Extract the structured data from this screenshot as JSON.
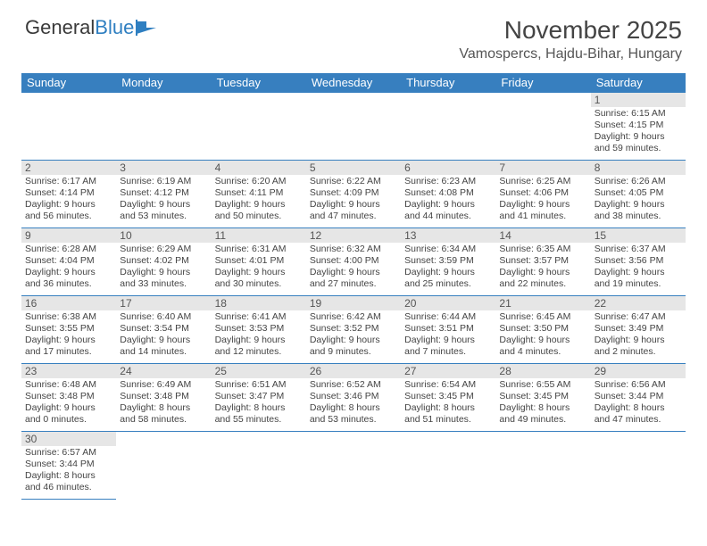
{
  "logo": {
    "text1": "General",
    "text2": "Blue"
  },
  "title": "November 2025",
  "location": "Vamospercs, Hajdu-Bihar, Hungary",
  "colors": {
    "header_bg": "#377fbf",
    "daynum_bg": "#e6e6e6",
    "text": "#444444",
    "logo_blue": "#2f7fc1"
  },
  "weekdays": [
    "Sunday",
    "Monday",
    "Tuesday",
    "Wednesday",
    "Thursday",
    "Friday",
    "Saturday"
  ],
  "weeks": [
    [
      null,
      null,
      null,
      null,
      null,
      null,
      {
        "n": "1",
        "sr": "Sunrise: 6:15 AM",
        "ss": "Sunset: 4:15 PM",
        "d1": "Daylight: 9 hours",
        "d2": "and 59 minutes."
      }
    ],
    [
      {
        "n": "2",
        "sr": "Sunrise: 6:17 AM",
        "ss": "Sunset: 4:14 PM",
        "d1": "Daylight: 9 hours",
        "d2": "and 56 minutes."
      },
      {
        "n": "3",
        "sr": "Sunrise: 6:19 AM",
        "ss": "Sunset: 4:12 PM",
        "d1": "Daylight: 9 hours",
        "d2": "and 53 minutes."
      },
      {
        "n": "4",
        "sr": "Sunrise: 6:20 AM",
        "ss": "Sunset: 4:11 PM",
        "d1": "Daylight: 9 hours",
        "d2": "and 50 minutes."
      },
      {
        "n": "5",
        "sr": "Sunrise: 6:22 AM",
        "ss": "Sunset: 4:09 PM",
        "d1": "Daylight: 9 hours",
        "d2": "and 47 minutes."
      },
      {
        "n": "6",
        "sr": "Sunrise: 6:23 AM",
        "ss": "Sunset: 4:08 PM",
        "d1": "Daylight: 9 hours",
        "d2": "and 44 minutes."
      },
      {
        "n": "7",
        "sr": "Sunrise: 6:25 AM",
        "ss": "Sunset: 4:06 PM",
        "d1": "Daylight: 9 hours",
        "d2": "and 41 minutes."
      },
      {
        "n": "8",
        "sr": "Sunrise: 6:26 AM",
        "ss": "Sunset: 4:05 PM",
        "d1": "Daylight: 9 hours",
        "d2": "and 38 minutes."
      }
    ],
    [
      {
        "n": "9",
        "sr": "Sunrise: 6:28 AM",
        "ss": "Sunset: 4:04 PM",
        "d1": "Daylight: 9 hours",
        "d2": "and 36 minutes."
      },
      {
        "n": "10",
        "sr": "Sunrise: 6:29 AM",
        "ss": "Sunset: 4:02 PM",
        "d1": "Daylight: 9 hours",
        "d2": "and 33 minutes."
      },
      {
        "n": "11",
        "sr": "Sunrise: 6:31 AM",
        "ss": "Sunset: 4:01 PM",
        "d1": "Daylight: 9 hours",
        "d2": "and 30 minutes."
      },
      {
        "n": "12",
        "sr": "Sunrise: 6:32 AM",
        "ss": "Sunset: 4:00 PM",
        "d1": "Daylight: 9 hours",
        "d2": "and 27 minutes."
      },
      {
        "n": "13",
        "sr": "Sunrise: 6:34 AM",
        "ss": "Sunset: 3:59 PM",
        "d1": "Daylight: 9 hours",
        "d2": "and 25 minutes."
      },
      {
        "n": "14",
        "sr": "Sunrise: 6:35 AM",
        "ss": "Sunset: 3:57 PM",
        "d1": "Daylight: 9 hours",
        "d2": "and 22 minutes."
      },
      {
        "n": "15",
        "sr": "Sunrise: 6:37 AM",
        "ss": "Sunset: 3:56 PM",
        "d1": "Daylight: 9 hours",
        "d2": "and 19 minutes."
      }
    ],
    [
      {
        "n": "16",
        "sr": "Sunrise: 6:38 AM",
        "ss": "Sunset: 3:55 PM",
        "d1": "Daylight: 9 hours",
        "d2": "and 17 minutes."
      },
      {
        "n": "17",
        "sr": "Sunrise: 6:40 AM",
        "ss": "Sunset: 3:54 PM",
        "d1": "Daylight: 9 hours",
        "d2": "and 14 minutes."
      },
      {
        "n": "18",
        "sr": "Sunrise: 6:41 AM",
        "ss": "Sunset: 3:53 PM",
        "d1": "Daylight: 9 hours",
        "d2": "and 12 minutes."
      },
      {
        "n": "19",
        "sr": "Sunrise: 6:42 AM",
        "ss": "Sunset: 3:52 PM",
        "d1": "Daylight: 9 hours",
        "d2": "and 9 minutes."
      },
      {
        "n": "20",
        "sr": "Sunrise: 6:44 AM",
        "ss": "Sunset: 3:51 PM",
        "d1": "Daylight: 9 hours",
        "d2": "and 7 minutes."
      },
      {
        "n": "21",
        "sr": "Sunrise: 6:45 AM",
        "ss": "Sunset: 3:50 PM",
        "d1": "Daylight: 9 hours",
        "d2": "and 4 minutes."
      },
      {
        "n": "22",
        "sr": "Sunrise: 6:47 AM",
        "ss": "Sunset: 3:49 PM",
        "d1": "Daylight: 9 hours",
        "d2": "and 2 minutes."
      }
    ],
    [
      {
        "n": "23",
        "sr": "Sunrise: 6:48 AM",
        "ss": "Sunset: 3:48 PM",
        "d1": "Daylight: 9 hours",
        "d2": "and 0 minutes."
      },
      {
        "n": "24",
        "sr": "Sunrise: 6:49 AM",
        "ss": "Sunset: 3:48 PM",
        "d1": "Daylight: 8 hours",
        "d2": "and 58 minutes."
      },
      {
        "n": "25",
        "sr": "Sunrise: 6:51 AM",
        "ss": "Sunset: 3:47 PM",
        "d1": "Daylight: 8 hours",
        "d2": "and 55 minutes."
      },
      {
        "n": "26",
        "sr": "Sunrise: 6:52 AM",
        "ss": "Sunset: 3:46 PM",
        "d1": "Daylight: 8 hours",
        "d2": "and 53 minutes."
      },
      {
        "n": "27",
        "sr": "Sunrise: 6:54 AM",
        "ss": "Sunset: 3:45 PM",
        "d1": "Daylight: 8 hours",
        "d2": "and 51 minutes."
      },
      {
        "n": "28",
        "sr": "Sunrise: 6:55 AM",
        "ss": "Sunset: 3:45 PM",
        "d1": "Daylight: 8 hours",
        "d2": "and 49 minutes."
      },
      {
        "n": "29",
        "sr": "Sunrise: 6:56 AM",
        "ss": "Sunset: 3:44 PM",
        "d1": "Daylight: 8 hours",
        "d2": "and 47 minutes."
      }
    ],
    [
      {
        "n": "30",
        "sr": "Sunrise: 6:57 AM",
        "ss": "Sunset: 3:44 PM",
        "d1": "Daylight: 8 hours",
        "d2": "and 46 minutes."
      },
      null,
      null,
      null,
      null,
      null,
      null
    ]
  ]
}
